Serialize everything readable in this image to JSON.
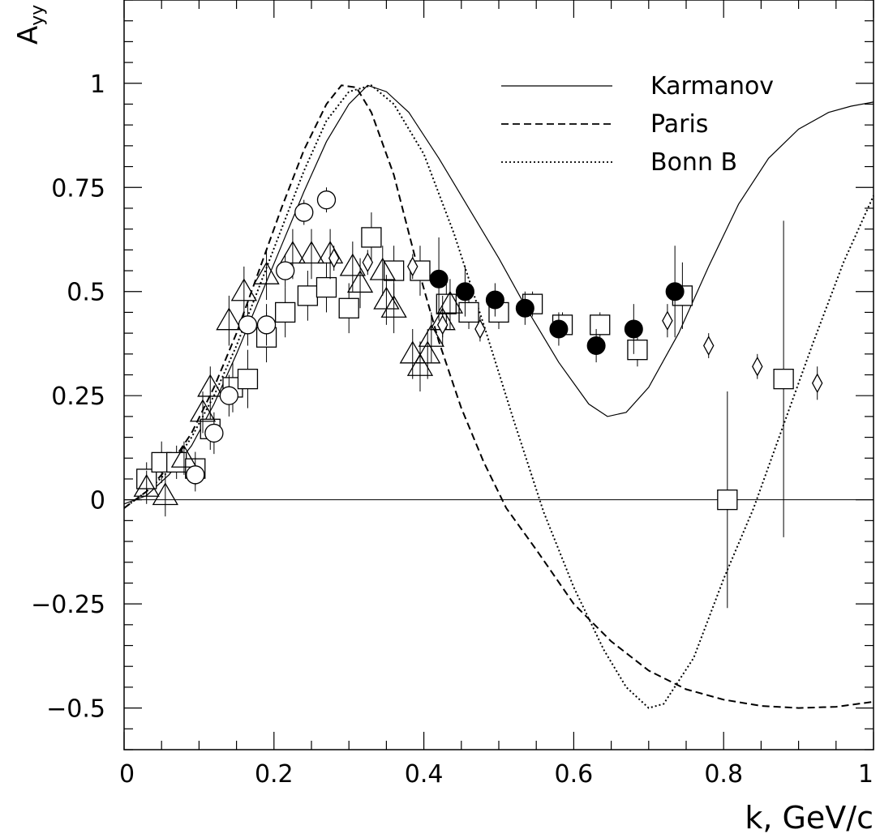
{
  "chart_data": {
    "type": "scatter",
    "title": "",
    "xlabel": "k,  GeV/c",
    "ylabel": "A",
    "ylabel_sub": "yy",
    "xlim": [
      0,
      1
    ],
    "ylim": [
      -0.6,
      1.2
    ],
    "x_ticks": [
      {
        "value": 0,
        "label": "0"
      },
      {
        "value": 0.2,
        "label": "0.2"
      },
      {
        "value": 0.4,
        "label": "0.4"
      },
      {
        "value": 0.6,
        "label": "0.6"
      },
      {
        "value": 0.8,
        "label": "0.8"
      },
      {
        "value": 1,
        "label": "1"
      }
    ],
    "y_ticks": [
      {
        "value": -0.5,
        "label": "−0.5"
      },
      {
        "value": -0.25,
        "label": "−0.25"
      },
      {
        "value": 0,
        "label": "0"
      },
      {
        "value": 0.25,
        "label": "0.25"
      },
      {
        "value": 0.5,
        "label": "0.5"
      },
      {
        "value": 0.75,
        "label": "0.75"
      },
      {
        "value": 1,
        "label": "1"
      }
    ],
    "grid": false,
    "legend_position": "top-right",
    "zero_line": true,
    "curves": [
      {
        "name": "Karmanov",
        "style": "solid",
        "points": [
          [
            0,
            -0.01
          ],
          [
            0.03,
            0.01
          ],
          [
            0.06,
            0.06
          ],
          [
            0.09,
            0.13
          ],
          [
            0.12,
            0.23
          ],
          [
            0.15,
            0.35
          ],
          [
            0.18,
            0.48
          ],
          [
            0.21,
            0.61
          ],
          [
            0.24,
            0.74
          ],
          [
            0.27,
            0.86
          ],
          [
            0.3,
            0.95
          ],
          [
            0.325,
            0.995
          ],
          [
            0.35,
            0.98
          ],
          [
            0.38,
            0.93
          ],
          [
            0.42,
            0.82
          ],
          [
            0.46,
            0.7
          ],
          [
            0.5,
            0.58
          ],
          [
            0.54,
            0.45
          ],
          [
            0.58,
            0.33
          ],
          [
            0.62,
            0.23
          ],
          [
            0.645,
            0.2
          ],
          [
            0.67,
            0.21
          ],
          [
            0.7,
            0.27
          ],
          [
            0.74,
            0.4
          ],
          [
            0.78,
            0.56
          ],
          [
            0.82,
            0.71
          ],
          [
            0.86,
            0.82
          ],
          [
            0.9,
            0.89
          ],
          [
            0.94,
            0.93
          ],
          [
            0.97,
            0.945
          ],
          [
            1.0,
            0.955
          ]
        ]
      },
      {
        "name": "Paris",
        "style": "dashed",
        "points": [
          [
            0,
            -0.02
          ],
          [
            0.03,
            0.02
          ],
          [
            0.06,
            0.08
          ],
          [
            0.09,
            0.16
          ],
          [
            0.12,
            0.27
          ],
          [
            0.15,
            0.4
          ],
          [
            0.18,
            0.55
          ],
          [
            0.21,
            0.7
          ],
          [
            0.24,
            0.84
          ],
          [
            0.27,
            0.95
          ],
          [
            0.29,
            0.995
          ],
          [
            0.31,
            0.99
          ],
          [
            0.33,
            0.93
          ],
          [
            0.36,
            0.78
          ],
          [
            0.39,
            0.57
          ],
          [
            0.42,
            0.38
          ],
          [
            0.45,
            0.22
          ],
          [
            0.48,
            0.09
          ],
          [
            0.51,
            -0.02
          ],
          [
            0.55,
            -0.12
          ],
          [
            0.6,
            -0.25
          ],
          [
            0.65,
            -0.34
          ],
          [
            0.7,
            -0.41
          ],
          [
            0.75,
            -0.455
          ],
          [
            0.8,
            -0.48
          ],
          [
            0.85,
            -0.495
          ],
          [
            0.9,
            -0.5
          ],
          [
            0.95,
            -0.497
          ],
          [
            1.0,
            -0.485
          ]
        ]
      },
      {
        "name": "Bonn B",
        "style": "dotted",
        "points": [
          [
            0,
            -0.02
          ],
          [
            0.03,
            0.02
          ],
          [
            0.06,
            0.07
          ],
          [
            0.09,
            0.15
          ],
          [
            0.12,
            0.25
          ],
          [
            0.15,
            0.37
          ],
          [
            0.18,
            0.51
          ],
          [
            0.21,
            0.65
          ],
          [
            0.24,
            0.79
          ],
          [
            0.27,
            0.91
          ],
          [
            0.3,
            0.98
          ],
          [
            0.33,
            0.995
          ],
          [
            0.36,
            0.95
          ],
          [
            0.4,
            0.83
          ],
          [
            0.44,
            0.64
          ],
          [
            0.48,
            0.42
          ],
          [
            0.52,
            0.19
          ],
          [
            0.56,
            -0.03
          ],
          [
            0.6,
            -0.21
          ],
          [
            0.64,
            -0.36
          ],
          [
            0.67,
            -0.45
          ],
          [
            0.7,
            -0.5
          ],
          [
            0.72,
            -0.49
          ],
          [
            0.76,
            -0.38
          ],
          [
            0.8,
            -0.19
          ],
          [
            0.84,
            -0.02
          ],
          [
            0.88,
            0.18
          ],
          [
            0.92,
            0.38
          ],
          [
            0.96,
            0.57
          ],
          [
            1.0,
            0.73
          ]
        ]
      }
    ],
    "series": [
      {
        "marker": "square",
        "points": [
          [
            0.03,
            0.05,
            0.04
          ],
          [
            0.05,
            0.09,
            0.05
          ],
          [
            0.07,
            0.09,
            0.04
          ],
          [
            0.095,
            0.075,
            0.04
          ],
          [
            0.115,
            0.17,
            0.05
          ],
          [
            0.145,
            0.27,
            0.06
          ],
          [
            0.165,
            0.29,
            0.07
          ],
          [
            0.19,
            0.39,
            0.06
          ],
          [
            0.215,
            0.45,
            0.06
          ],
          [
            0.245,
            0.49,
            0.06
          ],
          [
            0.27,
            0.51,
            0.06
          ],
          [
            0.3,
            0.46,
            0.06
          ],
          [
            0.33,
            0.63,
            0.06
          ],
          [
            0.36,
            0.55,
            0.06
          ],
          [
            0.395,
            0.55,
            0.06
          ],
          [
            0.43,
            0.47,
            0.06
          ],
          [
            0.46,
            0.45,
            0.04
          ],
          [
            0.5,
            0.45,
            0.04
          ],
          [
            0.545,
            0.47,
            0.03
          ],
          [
            0.585,
            0.42,
            0.03
          ],
          [
            0.635,
            0.42,
            0.03
          ],
          [
            0.685,
            0.36,
            0.04
          ],
          [
            0.745,
            0.49,
            0.08
          ],
          [
            0.805,
            0.0,
            0.26
          ],
          [
            0.88,
            0.29,
            0.38
          ]
        ]
      },
      {
        "marker": "triangle",
        "points": [
          [
            0.03,
            0.03,
            0.04
          ],
          [
            0.055,
            0.01,
            0.05
          ],
          [
            0.08,
            0.1,
            0.04
          ],
          [
            0.105,
            0.21,
            0.05
          ],
          [
            0.115,
            0.27,
            0.05
          ],
          [
            0.14,
            0.43,
            0.06
          ],
          [
            0.16,
            0.5,
            0.06
          ],
          [
            0.19,
            0.54,
            0.06
          ],
          [
            0.225,
            0.59,
            0.06
          ],
          [
            0.25,
            0.59,
            0.06
          ],
          [
            0.275,
            0.59,
            0.06
          ],
          [
            0.305,
            0.56,
            0.06
          ],
          [
            0.315,
            0.52,
            0.06
          ],
          [
            0.345,
            0.55,
            0.06
          ],
          [
            0.35,
            0.48,
            0.06
          ],
          [
            0.36,
            0.46,
            0.06
          ],
          [
            0.385,
            0.35,
            0.06
          ],
          [
            0.395,
            0.32,
            0.06
          ],
          [
            0.405,
            0.35,
            0.06
          ],
          [
            0.41,
            0.39,
            0.06
          ],
          [
            0.425,
            0.43,
            0.06
          ],
          [
            0.435,
            0.47,
            0.06
          ]
        ]
      },
      {
        "marker": "circle-open",
        "points": [
          [
            0.095,
            0.06,
            0.04
          ],
          [
            0.12,
            0.16,
            0.05
          ],
          [
            0.14,
            0.25,
            0.05
          ],
          [
            0.165,
            0.42,
            0.05
          ],
          [
            0.19,
            0.42,
            0.05
          ],
          [
            0.215,
            0.55,
            0.04
          ],
          [
            0.24,
            0.69,
            0.03
          ],
          [
            0.27,
            0.72,
            0.03
          ]
        ]
      },
      {
        "marker": "circle-filled",
        "points": [
          [
            0.42,
            0.53,
            0.1
          ],
          [
            0.455,
            0.5,
            0.06
          ],
          [
            0.495,
            0.48,
            0.04
          ],
          [
            0.535,
            0.46,
            0.04
          ],
          [
            0.58,
            0.41,
            0.04
          ],
          [
            0.63,
            0.37,
            0.04
          ],
          [
            0.68,
            0.41,
            0.06
          ],
          [
            0.735,
            0.5,
            0.11
          ]
        ]
      },
      {
        "marker": "diamond",
        "points": [
          [
            0.28,
            0.58,
            0.03
          ],
          [
            0.325,
            0.57,
            0.03
          ],
          [
            0.385,
            0.56,
            0.03
          ],
          [
            0.425,
            0.42,
            0.03
          ],
          [
            0.475,
            0.41,
            0.03
          ],
          [
            0.725,
            0.43,
            0.04
          ],
          [
            0.78,
            0.37,
            0.03
          ],
          [
            0.845,
            0.32,
            0.03
          ],
          [
            0.925,
            0.28,
            0.04
          ]
        ]
      }
    ]
  }
}
